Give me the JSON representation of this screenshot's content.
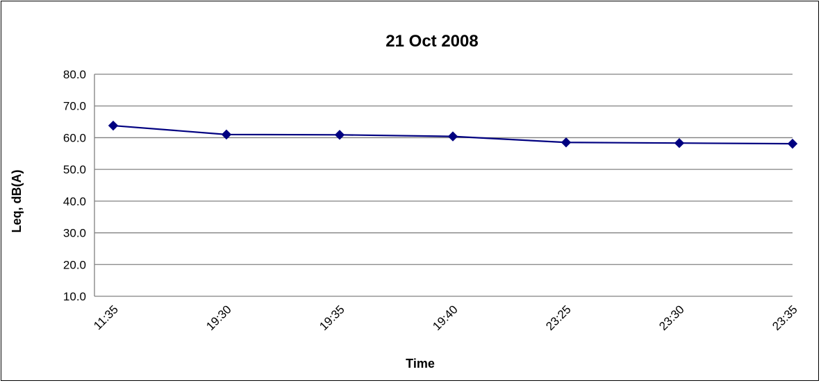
{
  "chart_data": {
    "type": "line",
    "title": "21 Oct 2008",
    "xlabel": "Time",
    "ylabel": "Leq, dB(A)",
    "categories": [
      "11:35",
      "19:30",
      "19:35",
      "19:40",
      "23:25",
      "23:30",
      "23:35"
    ],
    "series": [
      {
        "name": "",
        "values": [
          63.8,
          61.0,
          60.9,
          60.4,
          58.5,
          58.3,
          58.1
        ],
        "color": "#000080"
      }
    ],
    "ylim": [
      10,
      80
    ],
    "yticks": [
      "10.0",
      "20.0",
      "30.0",
      "40.0",
      "50.0",
      "60.0",
      "70.0",
      "80.0"
    ],
    "grid": true,
    "legend": "none",
    "marker": "diamond"
  }
}
